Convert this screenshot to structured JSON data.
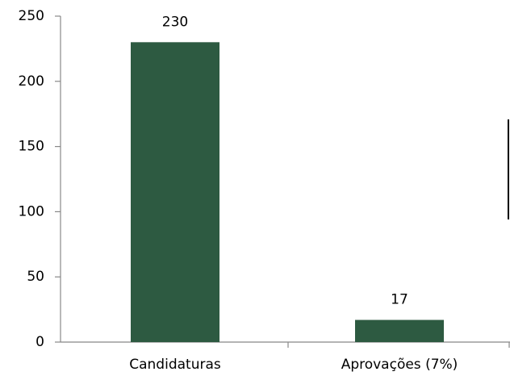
{
  "chart_data": {
    "type": "bar",
    "categories": [
      "Candidaturas",
      "Aprovações (7%)"
    ],
    "values": [
      230,
      17
    ],
    "color": "#2d5a41",
    "ylim": [
      0,
      250
    ],
    "yticks": [
      0,
      50,
      100,
      150,
      200,
      250
    ],
    "grid": false
  }
}
